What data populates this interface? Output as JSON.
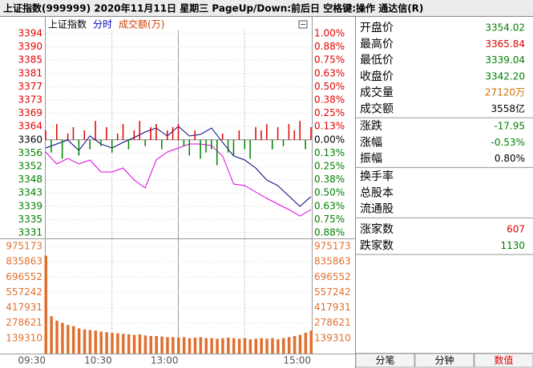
{
  "header": {
    "title": "上证指数(999999)  2020年11月11日 星期三 PageUp/Down:前后日 空格键:操作 通达信(R)"
  },
  "chart_legend": [
    {
      "text": "上证指数",
      "color": "#000000"
    },
    {
      "text": "分时",
      "color": "#0000c0"
    },
    {
      "text": "成交额(万)",
      "color": "#d04000"
    }
  ],
  "chart_data": [
    {
      "type": "line",
      "x": [
        0,
        10,
        20,
        30,
        40,
        50,
        60,
        70,
        80,
        90,
        100,
        110,
        120,
        130,
        140,
        150,
        160,
        170,
        180,
        190,
        200,
        210,
        220,
        230,
        240
      ],
      "series": [
        {
          "color": "#000080",
          "values": [
            3357.57,
            3358.83,
            3360.1,
            3356.81,
            3361.36,
            3358.83,
            3357.57,
            3359.34,
            3360.86,
            3362.63,
            3363.89,
            3361.36,
            3364.4,
            3361.36,
            3361.87,
            3363.89,
            3359.34,
            3355.04,
            3353.77,
            3351.24,
            3347.44,
            3345.67,
            3342.38,
            3339.09,
            3342.2
          ]
        },
        {
          "color": "#e000e0",
          "values": [
            3356.3,
            3352.51,
            3354.28,
            3352.51,
            3353.77,
            3349.97,
            3349.97,
            3351.24,
            3347.44,
            3344.91,
            3353.77,
            3356.3,
            3357.57,
            3358.83,
            3358.83,
            3358.32,
            3355.04,
            3346.18,
            3345.67,
            3343.65,
            3341.62,
            3339.85,
            3338.08,
            3336.06,
            3338.08
          ]
        }
      ],
      "xlim": [
        0,
        240
      ],
      "xgrid": [
        60,
        120,
        180
      ],
      "ylim": [
        3330.75,
        3393.75
      ],
      "yticks": [
        {
          "value": 3393.75,
          "label": "3394"
        },
        {
          "value": 3389.55,
          "label": "3390"
        },
        {
          "value": 3385.35,
          "label": "3385"
        },
        {
          "value": 3381.15,
          "label": "3381"
        },
        {
          "value": 3376.95,
          "label": "3377"
        },
        {
          "value": 3372.75,
          "label": "3373"
        },
        {
          "value": 3368.55,
          "label": "3369"
        },
        {
          "value": 3364.35,
          "label": "3364"
        },
        {
          "value": 3360.15,
          "label": "3360"
        },
        {
          "value": 3355.95,
          "label": "3356"
        },
        {
          "value": 3351.75,
          "label": "3352"
        },
        {
          "value": 3347.55,
          "label": "3348"
        },
        {
          "value": 3343.35,
          "label": "3343"
        },
        {
          "value": 3339.15,
          "label": "3339"
        },
        {
          "value": 3334.95,
          "label": "3335"
        },
        {
          "value": 3330.75,
          "label": "3331"
        }
      ],
      "y2lim": [
        -0.875,
        1.0
      ],
      "y2ticks": [
        {
          "value": 1.0,
          "label": "1.00%"
        },
        {
          "value": 0.875,
          "label": "0.88%"
        },
        {
          "value": 0.75,
          "label": "0.75%"
        },
        {
          "value": 0.625,
          "label": "0.63%"
        },
        {
          "value": 0.5,
          "label": "0.50%"
        },
        {
          "value": 0.375,
          "label": "0.38%"
        },
        {
          "value": 0.25,
          "label": "0.25%"
        },
        {
          "value": 0.125,
          "label": "0.13%"
        },
        {
          "value": 0,
          "label": "0.00%"
        },
        {
          "value": -0.125,
          "label": "0.13%"
        },
        {
          "value": -0.25,
          "label": "0.25%"
        },
        {
          "value": -0.375,
          "label": "0.38%"
        },
        {
          "value": -0.5,
          "label": "0.50%"
        },
        {
          "value": -0.625,
          "label": "0.63%"
        },
        {
          "value": -0.75,
          "label": "0.75%"
        },
        {
          "value": -0.875,
          "label": "0.88%"
        }
      ],
      "color_up": "#e00000",
      "color_down": "#008000",
      "color_flat": "#000000"
    },
    {
      "type": "strength",
      "x": [
        0,
        5,
        10,
        15,
        20,
        25,
        30,
        35,
        40,
        45,
        50,
        55,
        60,
        65,
        70,
        75,
        80,
        85,
        90,
        95,
        100,
        105,
        110,
        115,
        120,
        125,
        130,
        135,
        140,
        145,
        150,
        155,
        160,
        165,
        170,
        175,
        180,
        185,
        190,
        195,
        200,
        205,
        210,
        215,
        220,
        225,
        230,
        235,
        240
      ],
      "values": [
        3,
        -4,
        5,
        -6,
        2,
        4,
        -5,
        3,
        -3,
        6,
        -2,
        4,
        -4,
        2,
        5,
        -3,
        3,
        6,
        -2,
        4,
        5,
        -3,
        3,
        4,
        5,
        -2,
        -5,
        3,
        -6,
        -4,
        -3,
        -8,
        2,
        -4,
        -5,
        3,
        -3,
        -6,
        4,
        3,
        5,
        -3,
        4,
        -2,
        5,
        3,
        6,
        -3,
        4
      ],
      "xlim": [
        0,
        240
      ],
      "ylim": [
        -29.4,
        33.6
      ],
      "color_up": "#e00000",
      "color_down": "#008000"
    },
    {
      "type": "bar",
      "x": [
        0,
        5,
        10,
        15,
        20,
        25,
        30,
        35,
        40,
        45,
        50,
        55,
        60,
        65,
        70,
        75,
        80,
        85,
        90,
        95,
        100,
        105,
        110,
        115,
        120,
        125,
        130,
        135,
        140,
        145,
        150,
        155,
        160,
        165,
        170,
        175,
        180,
        185,
        190,
        195,
        200,
        205,
        210,
        215,
        220,
        225,
        230,
        235,
        240
      ],
      "values": [
        890000,
        340000,
        300000,
        280000,
        260000,
        250000,
        230000,
        220000,
        215000,
        210000,
        200000,
        195000,
        190000,
        185000,
        180000,
        175000,
        170000,
        175000,
        165000,
        160000,
        160000,
        155000,
        150000,
        150000,
        145000,
        150000,
        140000,
        145000,
        150000,
        140000,
        140000,
        135000,
        140000,
        145000,
        140000,
        135000,
        140000,
        130000,
        135000,
        140000,
        135000,
        140000,
        130000,
        140000,
        150000,
        160000,
        170000,
        190000,
        210000
      ],
      "color": "#e07030",
      "xlim": [
        0,
        240
      ],
      "ylim": [
        0,
        975173
      ],
      "yticks": [
        975173,
        835863,
        696552,
        557242,
        417931,
        278621,
        139310
      ],
      "xticks": [
        {
          "value": 0,
          "label": "09:30"
        },
        {
          "value": 60,
          "label": "10:30"
        },
        {
          "value": 120,
          "label": "13:00"
        },
        {
          "value": 240,
          "label": "15:00"
        }
      ]
    }
  ],
  "quote": [
    [
      {
        "label": "开盘价",
        "value": "3354.02",
        "color": "#008000"
      },
      {
        "label": "最高价",
        "value": "3365.84",
        "color": "#e00000"
      },
      {
        "label": "最低价",
        "value": "3339.04",
        "color": "#008000"
      },
      {
        "label": "收盘价",
        "value": "3342.20",
        "color": "#008000"
      },
      {
        "label": "成交量",
        "value": "27120万",
        "color": "#d07000"
      },
      {
        "label": "成交额",
        "value": "3558亿",
        "color": "#000000"
      }
    ],
    [
      {
        "label": "涨跌",
        "value": "-17.95",
        "color": "#008000"
      },
      {
        "label": "涨幅",
        "value": "-0.53%",
        "color": "#008000"
      },
      {
        "label": "振幅",
        "value": "0.80%",
        "color": "#000000"
      }
    ],
    [
      {
        "label": "换手率"
      },
      {
        "label": "总股本"
      },
      {
        "label": "流通股"
      }
    ],
    [
      {
        "label": "涨家数",
        "value": "607",
        "color": "#e00000"
      },
      {
        "label": "跌家数",
        "value": "1130",
        "color": "#008000"
      }
    ]
  ],
  "tabs": [
    {
      "label": "分笔",
      "color": "#000000"
    },
    {
      "label": "分钟",
      "color": "#000000"
    },
    {
      "label": "数值",
      "color": "#e00000"
    }
  ]
}
